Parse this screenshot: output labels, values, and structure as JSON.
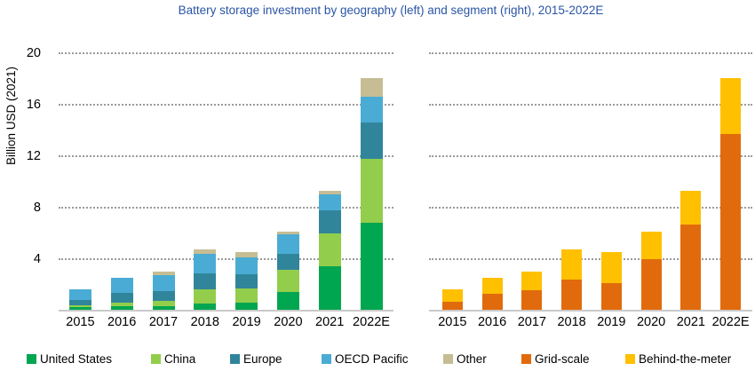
{
  "title": "Battery storage investment by geography (left) and segment (right), 2015-2022E",
  "y_axis": {
    "label": "Billion USD (2021)",
    "tick_labels": [
      "20",
      "16",
      "12",
      "8",
      "4"
    ],
    "ticks": [
      20,
      16,
      12,
      8,
      4
    ],
    "range": [
      0,
      20
    ]
  },
  "chart_data": [
    {
      "type": "bar",
      "stacked": true,
      "title": "Battery storage investment by geography",
      "categories": [
        "2015",
        "2016",
        "2017",
        "2018",
        "2019",
        "2020",
        "2021",
        "2022E"
      ],
      "ylabel": "Billion USD (2021)",
      "ylim": [
        0,
        20
      ],
      "grid": "dotted-horizontal",
      "series": [
        {
          "name": "United States",
          "color": "#00A650",
          "values": [
            0.25,
            0.3,
            0.3,
            0.5,
            0.6,
            1.45,
            3.4,
            6.8
          ]
        },
        {
          "name": "China",
          "color": "#92CE4B",
          "values": [
            0.15,
            0.3,
            0.4,
            1.1,
            1.1,
            1.7,
            2.6,
            5.0
          ]
        },
        {
          "name": "Europe",
          "color": "#31859B",
          "values": [
            0.4,
            0.75,
            0.8,
            1.3,
            1.1,
            1.25,
            1.8,
            2.8
          ]
        },
        {
          "name": "OECD Pacific",
          "color": "#4AACD4",
          "values": [
            0.8,
            1.15,
            1.25,
            1.5,
            1.3,
            1.5,
            1.2,
            2.0
          ]
        },
        {
          "name": "Other",
          "color": "#C6BD94",
          "values": [
            0.0,
            0.0,
            0.25,
            0.3,
            0.4,
            0.2,
            0.3,
            1.5
          ]
        }
      ],
      "totals": [
        1.6,
        2.5,
        3.0,
        4.7,
        4.5,
        6.1,
        9.3,
        18.1
      ]
    },
    {
      "type": "bar",
      "stacked": true,
      "title": "Battery storage investment by segment",
      "categories": [
        "2015",
        "2016",
        "2017",
        "2018",
        "2019",
        "2020",
        "2021",
        "2022E"
      ],
      "ylabel": "Billion USD (2021)",
      "ylim": [
        0,
        20
      ],
      "grid": "dotted-horizontal",
      "series": [
        {
          "name": "Grid-scale",
          "color": "#E16B0C",
          "values": [
            0.65,
            1.25,
            1.55,
            2.35,
            2.1,
            4.0,
            6.7,
            13.7
          ]
        },
        {
          "name": "Behind-the-meter",
          "color": "#FFC000",
          "values": [
            0.95,
            1.25,
            1.45,
            2.35,
            2.4,
            2.1,
            2.6,
            4.4
          ]
        }
      ],
      "totals": [
        1.6,
        2.5,
        3.0,
        4.7,
        4.5,
        6.1,
        9.3,
        18.1
      ]
    }
  ],
  "legend": [
    {
      "label": "United States",
      "color": "#00A650"
    },
    {
      "label": "China",
      "color": "#92CE4B"
    },
    {
      "label": "Europe",
      "color": "#31859B"
    },
    {
      "label": "OECD Pacific",
      "color": "#4AACD4"
    },
    {
      "label": "Other",
      "color": "#C6BD94"
    },
    {
      "label": "Grid-scale",
      "color": "#E16B0C"
    },
    {
      "label": "Behind-the-meter",
      "color": "#FFC000"
    }
  ]
}
